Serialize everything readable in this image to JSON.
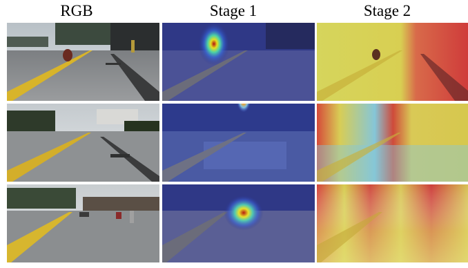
{
  "columns": [
    "RGB",
    "Stage 1",
    "Stage 2"
  ],
  "rows": 3
}
